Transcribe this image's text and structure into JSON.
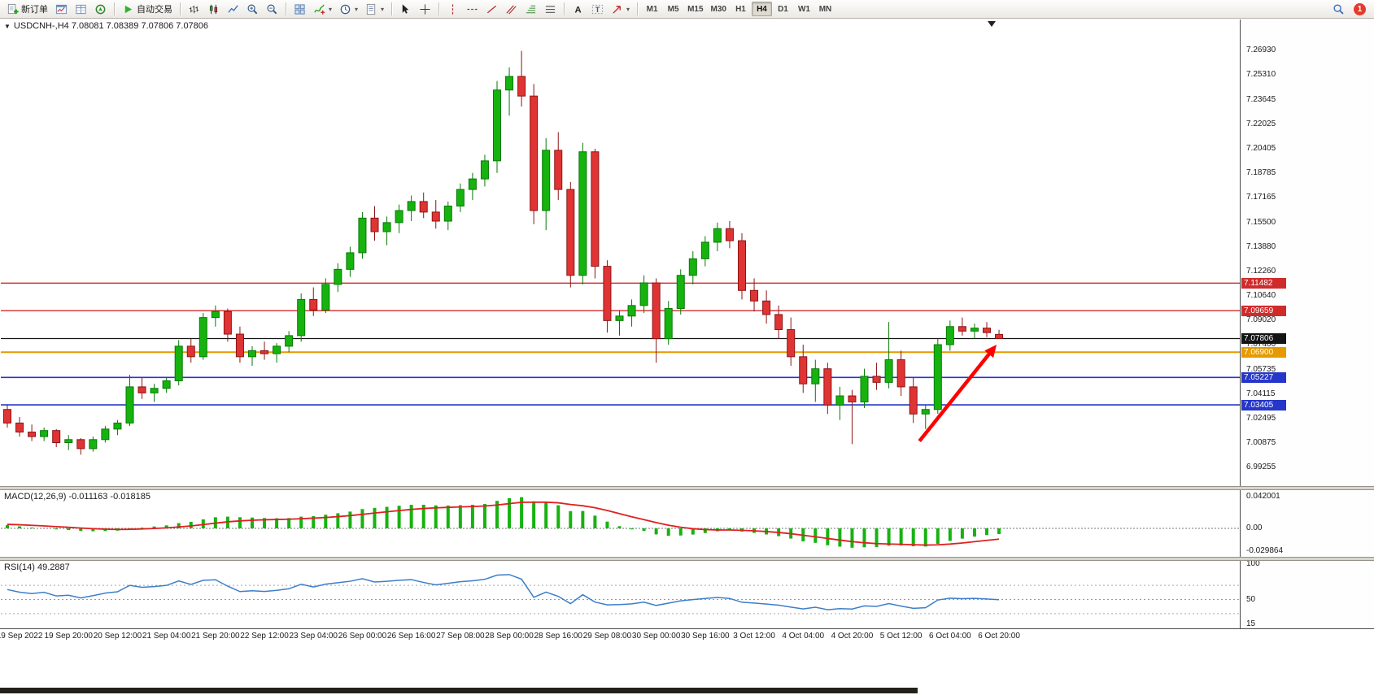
{
  "toolbar": {
    "new_order_label": "新订单",
    "autotrading_label": "自动交易",
    "timeframes": [
      "M1",
      "M5",
      "M15",
      "M30",
      "H1",
      "H4",
      "D1",
      "W1",
      "MN"
    ],
    "active_timeframe": "H4",
    "notification_count": "1"
  },
  "legend": {
    "main": "USDCNH-,H4 7.08081 7.08389 7.07806 7.07806",
    "macd": "MACD(12,26,9) -0.011163 -0.018185",
    "rsi": "RSI(14) 49.2887"
  },
  "price_axis": {
    "labels": [
      "7.26930",
      "7.25310",
      "7.23645",
      "7.22025",
      "7.20405",
      "7.18785",
      "7.17165",
      "7.15500",
      "7.13880",
      "7.12260",
      "7.10640",
      "7.09020",
      "7.07400",
      "7.05735",
      "7.04115",
      "7.02495",
      "7.00875",
      "6.99255"
    ]
  },
  "macd_axis": {
    "labels": [
      "0.042001",
      "0.00",
      "-0.029864"
    ]
  },
  "rsi_axis": {
    "labels": [
      "100",
      "50",
      "15"
    ]
  },
  "time_axis": {
    "labels": [
      "19 Sep 2022",
      "19 Sep 20:00",
      "20 Sep 12:00",
      "21 Sep 04:00",
      "21 Sep 20:00",
      "22 Sep 12:00",
      "23 Sep 04:00",
      "26 Sep 00:00",
      "26 Sep 16:00",
      "27 Sep 08:00",
      "28 Sep 00:00",
      "28 Sep 16:00",
      "29 Sep 08:00",
      "30 Sep 00:00",
      "30 Sep 16:00",
      "3 Oct 12:00",
      "4 Oct 04:00",
      "4 Oct 20:00",
      "5 Oct 12:00",
      "6 Oct 04:00",
      "6 Oct 20:00"
    ]
  },
  "hlines": [
    {
      "price": 7.11482,
      "tag": "7.11482",
      "color": "#d02b2b",
      "width": 1.4
    },
    {
      "price": 7.09659,
      "tag": "7.09659",
      "color": "#d02b2b",
      "width": 1.4
    },
    {
      "price": 7.07806,
      "tag": "7.07806",
      "color": "#141414",
      "width": 1.2
    },
    {
      "price": 7.069,
      "tag": "7.06900",
      "color": "#e59a00",
      "width": 2
    },
    {
      "price": 7.05227,
      "tag": "7.05227",
      "color": "#2636c8",
      "width": 1.6
    },
    {
      "price": 7.03405,
      "tag": "7.03405",
      "color": "#2636c8",
      "width": 1.6
    }
  ],
  "chart_data": {
    "type": "candlestick",
    "symbol": "USDCNH-",
    "timeframe": "H4",
    "ohlc_current": {
      "open": 7.08081,
      "high": 7.08389,
      "low": 7.07806,
      "close": 7.07806
    },
    "visible_price_range": [
      6.985,
      7.279
    ],
    "candles": [
      [
        7.031,
        7.034,
        7.019,
        7.022
      ],
      [
        7.022,
        7.026,
        7.013,
        7.016
      ],
      [
        7.016,
        7.021,
        7.01,
        7.013
      ],
      [
        7.013,
        7.019,
        7.01,
        7.017
      ],
      [
        7.017,
        7.018,
        7.006,
        7.009
      ],
      [
        7.009,
        7.014,
        7.004,
        7.011
      ],
      [
        7.011,
        7.012,
        7.001,
        7.005
      ],
      [
        7.005,
        7.013,
        7.003,
        7.011
      ],
      [
        7.011,
        7.02,
        7.009,
        7.018
      ],
      [
        7.018,
        7.024,
        7.014,
        7.022
      ],
      [
        7.022,
        7.054,
        7.02,
        7.046
      ],
      [
        7.046,
        7.052,
        7.038,
        7.042
      ],
      [
        7.042,
        7.048,
        7.036,
        7.045
      ],
      [
        7.045,
        7.052,
        7.042,
        7.05
      ],
      [
        7.05,
        7.077,
        7.047,
        7.073
      ],
      [
        7.073,
        7.078,
        7.062,
        7.066
      ],
      [
        7.066,
        7.095,
        7.064,
        7.092
      ],
      [
        7.092,
        7.1,
        7.086,
        7.096
      ],
      [
        7.096,
        7.098,
        7.076,
        7.081
      ],
      [
        7.081,
        7.086,
        7.062,
        7.066
      ],
      [
        7.066,
        7.073,
        7.06,
        7.07
      ],
      [
        7.07,
        7.076,
        7.064,
        7.068
      ],
      [
        7.068,
        7.075,
        7.062,
        7.073
      ],
      [
        7.073,
        7.083,
        7.069,
        7.08
      ],
      [
        7.08,
        7.108,
        7.076,
        7.104
      ],
      [
        7.104,
        7.112,
        7.093,
        7.097
      ],
      [
        7.097,
        7.118,
        7.095,
        7.114
      ],
      [
        7.114,
        7.128,
        7.109,
        7.124
      ],
      [
        7.124,
        7.139,
        7.119,
        7.135
      ],
      [
        7.135,
        7.162,
        7.131,
        7.158
      ],
      [
        7.158,
        7.166,
        7.143,
        7.149
      ],
      [
        7.149,
        7.159,
        7.14,
        7.155
      ],
      [
        7.155,
        7.167,
        7.148,
        7.163
      ],
      [
        7.163,
        7.173,
        7.156,
        7.169
      ],
      [
        7.169,
        7.175,
        7.158,
        7.162
      ],
      [
        7.162,
        7.17,
        7.151,
        7.156
      ],
      [
        7.156,
        7.169,
        7.15,
        7.166
      ],
      [
        7.166,
        7.181,
        7.162,
        7.177
      ],
      [
        7.177,
        7.188,
        7.17,
        7.184
      ],
      [
        7.184,
        7.2,
        7.179,
        7.196
      ],
      [
        7.196,
        7.249,
        7.188,
        7.243
      ],
      [
        7.243,
        7.258,
        7.226,
        7.252
      ],
      [
        7.252,
        7.269,
        7.232,
        7.239
      ],
      [
        7.239,
        7.247,
        7.154,
        7.163
      ],
      [
        7.163,
        7.211,
        7.15,
        7.203
      ],
      [
        7.203,
        7.215,
        7.17,
        7.177
      ],
      [
        7.177,
        7.182,
        7.112,
        7.12
      ],
      [
        7.12,
        7.208,
        7.114,
        7.202
      ],
      [
        7.202,
        7.204,
        7.118,
        7.126
      ],
      [
        7.126,
        7.13,
        7.082,
        7.09
      ],
      [
        7.09,
        7.097,
        7.08,
        7.093
      ],
      [
        7.093,
        7.104,
        7.086,
        7.1
      ],
      [
        7.1,
        7.12,
        7.095,
        7.115
      ],
      [
        7.115,
        7.118,
        7.062,
        7.078
      ],
      [
        7.078,
        7.103,
        7.074,
        7.098
      ],
      [
        7.098,
        7.124,
        7.094,
        7.12
      ],
      [
        7.12,
        7.136,
        7.114,
        7.131
      ],
      [
        7.131,
        7.146,
        7.126,
        7.142
      ],
      [
        7.142,
        7.155,
        7.136,
        7.151
      ],
      [
        7.151,
        7.156,
        7.138,
        7.143
      ],
      [
        7.143,
        7.148,
        7.104,
        7.11
      ],
      [
        7.11,
        7.118,
        7.096,
        7.103
      ],
      [
        7.103,
        7.11,
        7.088,
        7.094
      ],
      [
        7.094,
        7.1,
        7.078,
        7.084
      ],
      [
        7.084,
        7.092,
        7.06,
        7.066
      ],
      [
        7.066,
        7.074,
        7.042,
        7.048
      ],
      [
        7.048,
        7.064,
        7.036,
        7.058
      ],
      [
        7.058,
        7.062,
        7.028,
        7.034
      ],
      [
        7.034,
        7.046,
        7.024,
        7.04
      ],
      [
        7.04,
        7.044,
        7.008,
        7.036
      ],
      [
        7.036,
        7.058,
        7.032,
        7.053
      ],
      [
        7.053,
        7.062,
        7.044,
        7.049
      ],
      [
        7.049,
        7.089,
        7.045,
        7.064
      ],
      [
        7.064,
        7.07,
        7.04,
        7.046
      ],
      [
        7.046,
        7.052,
        7.022,
        7.028
      ],
      [
        7.028,
        7.034,
        7.018,
        7.031
      ],
      [
        7.031,
        7.078,
        7.028,
        7.074
      ],
      [
        7.074,
        7.09,
        7.07,
        7.086
      ],
      [
        7.086,
        7.092,
        7.08,
        7.083
      ],
      [
        7.083,
        7.088,
        7.078,
        7.085
      ],
      [
        7.085,
        7.089,
        7.079,
        7.082
      ],
      [
        7.08081,
        7.08389,
        7.07806,
        7.07806
      ]
    ],
    "overlays": {
      "horizontal_line_prices": [
        7.11482,
        7.09659,
        7.07806,
        7.069,
        7.05227,
        7.03405
      ]
    },
    "indicators": {
      "macd": {
        "params": [
          12,
          26,
          9
        ],
        "current_main": -0.011163,
        "current_signal": -0.018185,
        "axis_range": [
          -0.029864,
          0.042001
        ]
      },
      "rsi": {
        "params": [
          14
        ],
        "current": 49.2887,
        "axis_marks": [
          100,
          50,
          15
        ]
      }
    },
    "annotation_arrow": {
      "from_index": 74.5,
      "from_price": 7.01,
      "to_index": 80.8,
      "to_price": 7.074,
      "color": "#ff0000"
    }
  },
  "colors": {
    "bull": "#16b30f",
    "bear": "#e03434",
    "bull_edge": "#067a06",
    "bear_edge": "#8d1414",
    "macd_histogram": "#16b30f",
    "macd_signal": "#e02020",
    "rsi_line": "#3d7ec9",
    "background": "#ffffff"
  }
}
